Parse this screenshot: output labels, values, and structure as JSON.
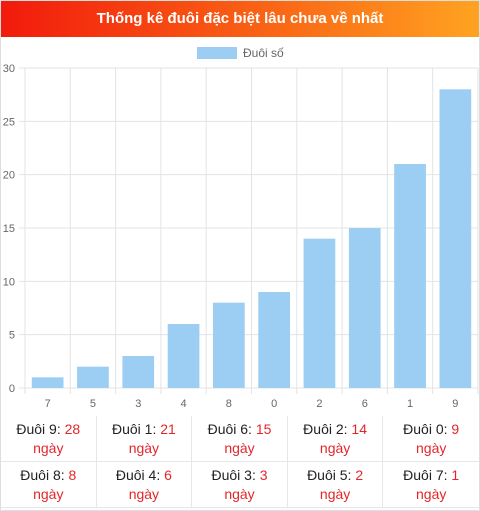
{
  "header": {
    "title": "Thống kê đuôi đặc biệt lâu chưa về nhất"
  },
  "chart_data": {
    "type": "bar",
    "title": "",
    "categories": [
      "7",
      "5",
      "3",
      "4",
      "8",
      "0",
      "2",
      "6",
      "1",
      "9"
    ],
    "series": [
      {
        "name": "Đuôi số",
        "values": [
          1,
          2,
          3,
          6,
          8,
          9,
          14,
          15,
          21,
          28
        ]
      }
    ],
    "ylim": [
      0,
      30
    ],
    "yticks": [
      "0",
      "5",
      "10",
      "15",
      "20",
      "25",
      "30"
    ],
    "xlabel": "",
    "ylabel": "",
    "grid": true,
    "legend": "top-center",
    "bar_color": "#9ccdf3",
    "grid_color": "#e3e3e3"
  },
  "stats": [
    {
      "label": "Đuôi 9:",
      "value": "28",
      "unit": "ngày"
    },
    {
      "label": "Đuôi 1:",
      "value": "21",
      "unit": "ngày"
    },
    {
      "label": "Đuôi 6:",
      "value": "15",
      "unit": "ngày"
    },
    {
      "label": "Đuôi 2:",
      "value": "14",
      "unit": "ngày"
    },
    {
      "label": "Đuôi 0:",
      "value": "9",
      "unit": "ngày"
    },
    {
      "label": "Đuôi 8:",
      "value": "8",
      "unit": "ngày"
    },
    {
      "label": "Đuôi 4:",
      "value": "6",
      "unit": "ngày"
    },
    {
      "label": "Đuôi 3:",
      "value": "3",
      "unit": "ngày"
    },
    {
      "label": "Đuôi 5:",
      "value": "2",
      "unit": "ngày"
    },
    {
      "label": "Đuôi 7:",
      "value": "1",
      "unit": "ngày"
    }
  ],
  "colors": {
    "accent_red": "#e3262b",
    "header_start": "#f21a0c",
    "header_end": "#ffa321"
  }
}
